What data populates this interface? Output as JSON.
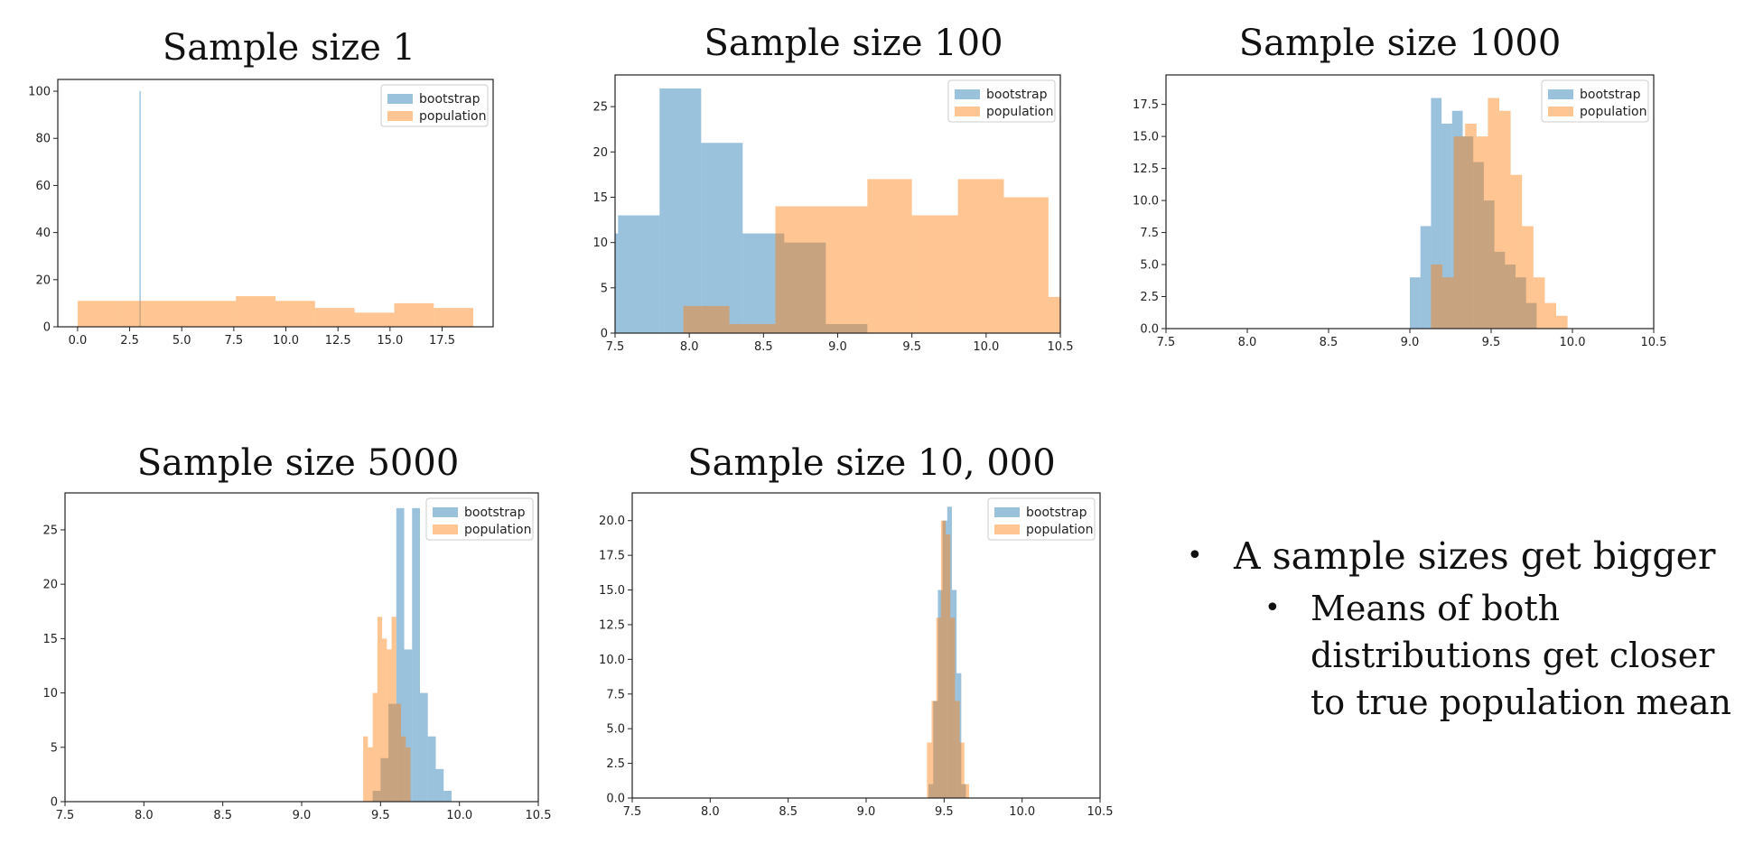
{
  "legend": {
    "bootstrap": "bootstrap",
    "population": "population"
  },
  "colors": {
    "bootstrap": "#1f77b4",
    "population": "#ff7f0e",
    "overlap_bar_opacity": 0.45
  },
  "chart_data": [
    {
      "type": "bar",
      "title": "Sample size 1",
      "xlim": [
        -0.95,
        19.95
      ],
      "ylim": [
        0,
        105
      ],
      "xticks": [
        "0.0",
        "2.5",
        "5.0",
        "7.5",
        "10.0",
        "12.5",
        "15.0",
        "17.5"
      ],
      "yticks": [
        "0",
        "20",
        "40",
        "60",
        "80",
        "100"
      ],
      "legend_position": "top-right",
      "series": [
        {
          "name": "bootstrap",
          "bins": [
            [
              2.97,
              3.03,
              100
            ]
          ]
        },
        {
          "name": "population",
          "bins": [
            [
              0.0,
              1.9,
              11
            ],
            [
              1.9,
              3.8,
              11
            ],
            [
              3.8,
              5.7,
              11
            ],
            [
              5.7,
              7.6,
              11
            ],
            [
              7.6,
              9.5,
              13
            ],
            [
              9.5,
              11.4,
              11
            ],
            [
              11.4,
              13.3,
              8
            ],
            [
              13.3,
              15.2,
              6
            ],
            [
              15.2,
              17.1,
              10
            ],
            [
              17.1,
              19.0,
              8
            ]
          ]
        }
      ]
    },
    {
      "type": "bar",
      "title": "Sample size 100",
      "xlim": [
        7.5,
        10.5
      ],
      "ylim": [
        0,
        28.5
      ],
      "xticks": [
        "7.5",
        "8.0",
        "8.5",
        "9.0",
        "9.5",
        "10.0",
        "10.5"
      ],
      "yticks": [
        "0",
        "5",
        "10",
        "15",
        "20",
        "25"
      ],
      "legend_position": "top-right",
      "series": [
        {
          "name": "bootstrap",
          "bins": [
            [
              7.42,
              7.52,
              11
            ],
            [
              7.52,
              7.8,
              13
            ],
            [
              7.8,
              8.08,
              27
            ],
            [
              8.08,
              8.36,
              21
            ],
            [
              8.36,
              8.64,
              11
            ],
            [
              8.64,
              8.92,
              10
            ],
            [
              8.92,
              9.2,
              1
            ]
          ]
        },
        {
          "name": "population",
          "bins": [
            [
              7.96,
              8.27,
              3
            ],
            [
              8.27,
              8.58,
              1
            ],
            [
              8.58,
              8.89,
              14
            ],
            [
              8.89,
              9.2,
              14
            ],
            [
              9.2,
              9.5,
              17
            ],
            [
              9.5,
              9.81,
              13
            ],
            [
              9.81,
              10.12,
              17
            ],
            [
              10.12,
              10.42,
              15
            ],
            [
              10.42,
              10.73,
              4
            ]
          ]
        }
      ]
    },
    {
      "type": "bar",
      "title": "Sample size 1000",
      "xlim": [
        7.5,
        10.5
      ],
      "ylim": [
        0,
        19.8
      ],
      "xticks": [
        "7.5",
        "8.0",
        "8.5",
        "9.0",
        "9.5",
        "10.0",
        "10.5"
      ],
      "yticks": [
        "0.0",
        "2.5",
        "5.0",
        "7.5",
        "10.0",
        "12.5",
        "15.0",
        "17.5"
      ],
      "legend_position": "top-right",
      "series": [
        {
          "name": "bootstrap",
          "bins": [
            [
              9.0,
              9.065,
              4
            ],
            [
              9.065,
              9.13,
              8
            ],
            [
              9.13,
              9.195,
              18
            ],
            [
              9.195,
              9.26,
              16
            ],
            [
              9.26,
              9.325,
              17
            ],
            [
              9.325,
              9.39,
              15
            ],
            [
              9.39,
              9.455,
              13
            ],
            [
              9.455,
              9.52,
              10
            ],
            [
              9.52,
              9.585,
              6
            ],
            [
              9.585,
              9.65,
              5
            ],
            [
              9.65,
              9.715,
              4
            ],
            [
              9.715,
              9.78,
              2
            ]
          ]
        },
        {
          "name": "population",
          "bins": [
            [
              9.13,
              9.2,
              5
            ],
            [
              9.2,
              9.27,
              4
            ],
            [
              9.27,
              9.34,
              15
            ],
            [
              9.34,
              9.41,
              16
            ],
            [
              9.41,
              9.48,
              15
            ],
            [
              9.48,
              9.55,
              18
            ],
            [
              9.55,
              9.62,
              17
            ],
            [
              9.62,
              9.69,
              12
            ],
            [
              9.69,
              9.76,
              8
            ],
            [
              9.76,
              9.83,
              4
            ],
            [
              9.83,
              9.9,
              2
            ],
            [
              9.9,
              9.97,
              1
            ]
          ]
        }
      ]
    },
    {
      "type": "bar",
      "title": "Sample size 5000",
      "xlim": [
        7.5,
        10.5
      ],
      "ylim": [
        0,
        28.4
      ],
      "xticks": [
        "7.5",
        "8.0",
        "8.5",
        "9.0",
        "9.5",
        "10.0",
        "10.5"
      ],
      "yticks": [
        "0",
        "5",
        "10",
        "15",
        "20",
        "25"
      ],
      "legend_position": "top-right",
      "series": [
        {
          "name": "bootstrap",
          "bins": [
            [
              9.45,
              9.5,
              1
            ],
            [
              9.5,
              9.55,
              4
            ],
            [
              9.55,
              9.6,
              9
            ],
            [
              9.6,
              9.65,
              27
            ],
            [
              9.65,
              9.7,
              14
            ],
            [
              9.7,
              9.75,
              27
            ],
            [
              9.75,
              9.8,
              10
            ],
            [
              9.8,
              9.85,
              6
            ],
            [
              9.85,
              9.9,
              3
            ],
            [
              9.9,
              9.95,
              1
            ]
          ]
        },
        {
          "name": "population",
          "bins": [
            [
              9.39,
              9.42,
              6
            ],
            [
              9.42,
              9.45,
              5
            ],
            [
              9.45,
              9.48,
              10
            ],
            [
              9.48,
              9.51,
              17
            ],
            [
              9.51,
              9.54,
              15
            ],
            [
              9.54,
              9.57,
              14
            ],
            [
              9.57,
              9.6,
              17
            ],
            [
              9.6,
              9.63,
              9
            ],
            [
              9.63,
              9.66,
              6
            ],
            [
              9.66,
              9.69,
              5
            ]
          ]
        }
      ]
    },
    {
      "type": "bar",
      "title": "Sample size 10, 000",
      "xlim": [
        7.5,
        10.5
      ],
      "ylim": [
        0,
        22.0
      ],
      "xticks": [
        "7.5",
        "8.0",
        "8.5",
        "9.0",
        "9.5",
        "10.0",
        "10.5"
      ],
      "yticks": [
        "0.0",
        "2.5",
        "5.0",
        "7.5",
        "10.0",
        "12.5",
        "15.0",
        "17.5",
        "20.0"
      ],
      "legend_position": "top-right",
      "series": [
        {
          "name": "bootstrap",
          "bins": [
            [
              9.4,
              9.43,
              1
            ],
            [
              9.43,
              9.46,
              7
            ],
            [
              9.46,
              9.49,
              15
            ],
            [
              9.49,
              9.52,
              20
            ],
            [
              9.52,
              9.55,
              21
            ],
            [
              9.55,
              9.58,
              15
            ],
            [
              9.58,
              9.61,
              9
            ],
            [
              9.61,
              9.64,
              1
            ]
          ]
        },
        {
          "name": "population",
          "bins": [
            [
              9.39,
              9.42,
              4
            ],
            [
              9.42,
              9.45,
              7
            ],
            [
              9.45,
              9.48,
              13
            ],
            [
              9.48,
              9.51,
              20
            ],
            [
              9.51,
              9.54,
              19
            ],
            [
              9.54,
              9.57,
              13
            ],
            [
              9.57,
              9.6,
              7
            ],
            [
              9.6,
              9.63,
              4
            ],
            [
              9.63,
              9.66,
              1
            ]
          ]
        }
      ]
    }
  ],
  "notes": {
    "bullet_1": "A sample sizes get bigger",
    "bullet_2": "Means of both distributions get closer to true population mean"
  }
}
